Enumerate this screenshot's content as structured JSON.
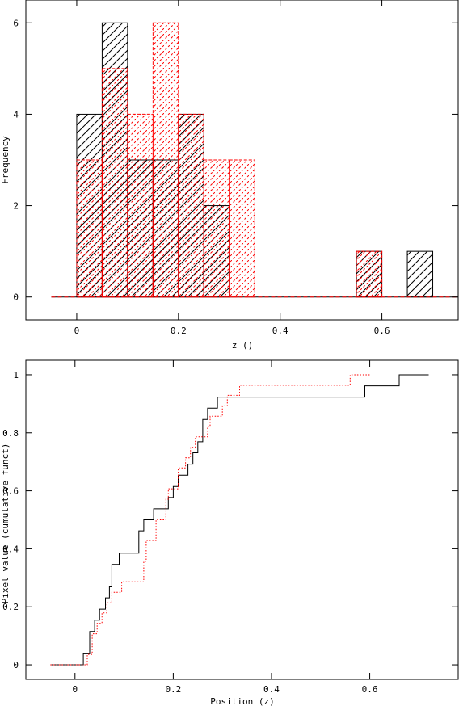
{
  "chart_data": [
    {
      "type": "bar",
      "subtype": "histogram",
      "xlabel": "z ()",
      "ylabel": "Frequency",
      "xlim": [
        -0.1,
        0.75
      ],
      "ylim": [
        -0.5,
        6.5
      ],
      "xticks": [
        0,
        0.2,
        0.4,
        0.6
      ],
      "xtick_labels": [
        "0",
        "0.2",
        "0.4",
        "0.6"
      ],
      "yticks": [
        0,
        2,
        4,
        6
      ],
      "ytick_labels": [
        "0",
        "2",
        "4",
        "6"
      ],
      "bin_edges": [
        0.0,
        0.05,
        0.1,
        0.15,
        0.2,
        0.25,
        0.3,
        0.35,
        0.4,
        0.45,
        0.5,
        0.55,
        0.6,
        0.65,
        0.7
      ],
      "series": [
        {
          "color": "#000000",
          "hatch": "diagonal-solid",
          "values": [
            4,
            6,
            3,
            3,
            4,
            2,
            0,
            0,
            0,
            0,
            0,
            1,
            0,
            1
          ]
        },
        {
          "color": "#ff0000",
          "hatch": "diagonal-dashed",
          "values": [
            3,
            5,
            4,
            6,
            4,
            3,
            3,
            0,
            0,
            0,
            0,
            1,
            0,
            0
          ]
        }
      ],
      "baseline_extent": [
        -0.05,
        0.75
      ],
      "grid": false
    },
    {
      "type": "line",
      "subtype": "cumulative-step",
      "xlabel": "Position (z)",
      "ylabel": "Pixel value (cumulative funct)",
      "xlim": [
        -0.1,
        0.78
      ],
      "ylim": [
        -0.05,
        1.05
      ],
      "xticks": [
        0,
        0.2,
        0.4,
        0.6
      ],
      "xtick_labels": [
        "0",
        "0.2",
        "0.4",
        "0.6"
      ],
      "yticks": [
        0,
        0.2,
        0.4,
        0.6,
        0.8,
        1
      ],
      "ytick_labels": [
        "0",
        "0.2",
        "0.4",
        "0.6",
        "0.8",
        "1"
      ],
      "series": [
        {
          "color": "#000000",
          "style": "solid",
          "points": [
            [
              -0.05,
              0
            ],
            [
              0.017,
              0
            ],
            [
              0.017,
              0.038
            ],
            [
              0.03,
              0.038
            ],
            [
              0.03,
              0.115
            ],
            [
              0.04,
              0.115
            ],
            [
              0.04,
              0.154
            ],
            [
              0.05,
              0.154
            ],
            [
              0.05,
              0.192
            ],
            [
              0.062,
              0.192
            ],
            [
              0.062,
              0.231
            ],
            [
              0.07,
              0.231
            ],
            [
              0.07,
              0.269
            ],
            [
              0.075,
              0.269
            ],
            [
              0.075,
              0.346
            ],
            [
              0.09,
              0.346
            ],
            [
              0.09,
              0.385
            ],
            [
              0.13,
              0.385
            ],
            [
              0.13,
              0.462
            ],
            [
              0.14,
              0.462
            ],
            [
              0.14,
              0.5
            ],
            [
              0.16,
              0.5
            ],
            [
              0.16,
              0.538
            ],
            [
              0.19,
              0.538
            ],
            [
              0.19,
              0.577
            ],
            [
              0.2,
              0.577
            ],
            [
              0.2,
              0.615
            ],
            [
              0.21,
              0.615
            ],
            [
              0.21,
              0.654
            ],
            [
              0.23,
              0.654
            ],
            [
              0.23,
              0.692
            ],
            [
              0.24,
              0.692
            ],
            [
              0.24,
              0.731
            ],
            [
              0.25,
              0.731
            ],
            [
              0.25,
              0.769
            ],
            [
              0.26,
              0.769
            ],
            [
              0.26,
              0.846
            ],
            [
              0.27,
              0.846
            ],
            [
              0.27,
              0.885
            ],
            [
              0.29,
              0.885
            ],
            [
              0.29,
              0.923
            ],
            [
              0.59,
              0.923
            ],
            [
              0.59,
              0.962
            ],
            [
              0.66,
              0.962
            ],
            [
              0.66,
              1.0
            ],
            [
              0.72,
              1.0
            ]
          ]
        },
        {
          "color": "#ff0000",
          "style": "dotted",
          "points": [
            [
              -0.05,
              0
            ],
            [
              0.025,
              0
            ],
            [
              0.025,
              0.036
            ],
            [
              0.035,
              0.036
            ],
            [
              0.035,
              0.107
            ],
            [
              0.045,
              0.107
            ],
            [
              0.045,
              0.143
            ],
            [
              0.055,
              0.143
            ],
            [
              0.055,
              0.179
            ],
            [
              0.065,
              0.179
            ],
            [
              0.065,
              0.214
            ],
            [
              0.075,
              0.214
            ],
            [
              0.075,
              0.25
            ],
            [
              0.095,
              0.25
            ],
            [
              0.095,
              0.286
            ],
            [
              0.14,
              0.286
            ],
            [
              0.14,
              0.357
            ],
            [
              0.145,
              0.357
            ],
            [
              0.145,
              0.429
            ],
            [
              0.165,
              0.429
            ],
            [
              0.165,
              0.5
            ],
            [
              0.185,
              0.5
            ],
            [
              0.185,
              0.571
            ],
            [
              0.19,
              0.571
            ],
            [
              0.19,
              0.607
            ],
            [
              0.21,
              0.607
            ],
            [
              0.21,
              0.679
            ],
            [
              0.225,
              0.679
            ],
            [
              0.225,
              0.714
            ],
            [
              0.235,
              0.714
            ],
            [
              0.235,
              0.75
            ],
            [
              0.245,
              0.75
            ],
            [
              0.245,
              0.786
            ],
            [
              0.27,
              0.786
            ],
            [
              0.27,
              0.821
            ],
            [
              0.275,
              0.821
            ],
            [
              0.275,
              0.857
            ],
            [
              0.3,
              0.857
            ],
            [
              0.3,
              0.893
            ],
            [
              0.31,
              0.893
            ],
            [
              0.31,
              0.929
            ],
            [
              0.335,
              0.929
            ],
            [
              0.335,
              0.964
            ],
            [
              0.56,
              0.964
            ],
            [
              0.56,
              1.0
            ],
            [
              0.6,
              1.0
            ]
          ]
        }
      ],
      "grid": false
    }
  ]
}
